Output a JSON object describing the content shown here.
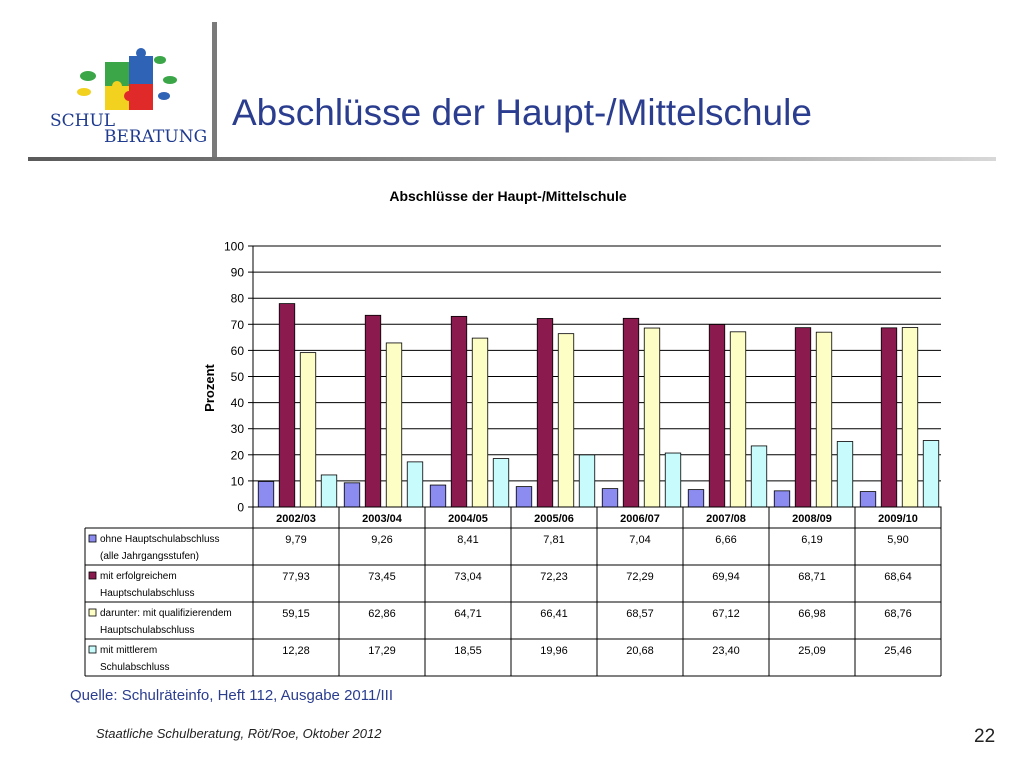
{
  "logo": {
    "line1": "SCHUL",
    "line2": "BERATUNG"
  },
  "slide": {
    "title": "Abschlüsse der Haupt-/Mittelschule",
    "source": "Quelle: Schulräteinfo, Heft 112, Ausgabe 2011/III",
    "footer": "Staatliche Schulberatung, Röt/Roe, Oktober 2012",
    "page_number": "22"
  },
  "chart_data": {
    "type": "bar",
    "title": "Abschlüsse der Haupt-/Mittelschule",
    "ylabel": "Prozent",
    "xlabel": "",
    "ylim": [
      0,
      100
    ],
    "yticks": [
      0,
      10,
      20,
      30,
      40,
      50,
      60,
      70,
      80,
      90,
      100
    ],
    "grid": true,
    "legend": "data-table",
    "categories": [
      "2002/03",
      "2003/04",
      "2004/05",
      "2005/06",
      "2006/07",
      "2007/08",
      "2008/09",
      "2009/10"
    ],
    "series": [
      {
        "name": "ohne Hauptschulabschluss (alle Jahrgangsstufen)",
        "label_lines": [
          "ohne Hauptschulabschluss",
          "(alle Jahrgangsstufen)"
        ],
        "color": "#8c8cf0",
        "values": [
          9.79,
          9.26,
          8.41,
          7.81,
          7.04,
          6.66,
          6.19,
          5.9
        ],
        "value_labels": [
          "9,79",
          "9,26",
          "8,41",
          "7,81",
          "7,04",
          "6,66",
          "6,19",
          "5,90"
        ]
      },
      {
        "name": "mit erfolgreichem Hauptschulabschluss",
        "label_lines": [
          "mit erfolgreichem",
          "Hauptschulabschluss"
        ],
        "color": "#8b1a4f",
        "values": [
          77.93,
          73.45,
          73.04,
          72.23,
          72.29,
          69.94,
          68.71,
          68.64
        ],
        "value_labels": [
          "77,93",
          "73,45",
          "73,04",
          "72,23",
          "72,29",
          "69,94",
          "68,71",
          "68,64"
        ]
      },
      {
        "name": "darunter: mit qualifizierendem Hauptschulabschluss",
        "label_lines": [
          "darunter: mit qualifizierendem",
          "Hauptschulabschluss"
        ],
        "color": "#fdfdc6",
        "values": [
          59.15,
          62.86,
          64.71,
          66.41,
          68.57,
          67.12,
          66.98,
          68.76
        ],
        "value_labels": [
          "59,15",
          "62,86",
          "64,71",
          "66,41",
          "68,57",
          "67,12",
          "66,98",
          "68,76"
        ]
      },
      {
        "name": "mit mittlerem Schulabschluss",
        "label_lines": [
          "mit mittlerem",
          "Schulabschluss"
        ],
        "color": "#c8fbfb",
        "values": [
          12.28,
          17.29,
          18.55,
          19.96,
          20.68,
          23.4,
          25.09,
          25.46
        ],
        "value_labels": [
          "12,28",
          "17,29",
          "18,55",
          "19,96",
          "20,68",
          "23,40",
          "25,09",
          "25,46"
        ]
      }
    ]
  }
}
